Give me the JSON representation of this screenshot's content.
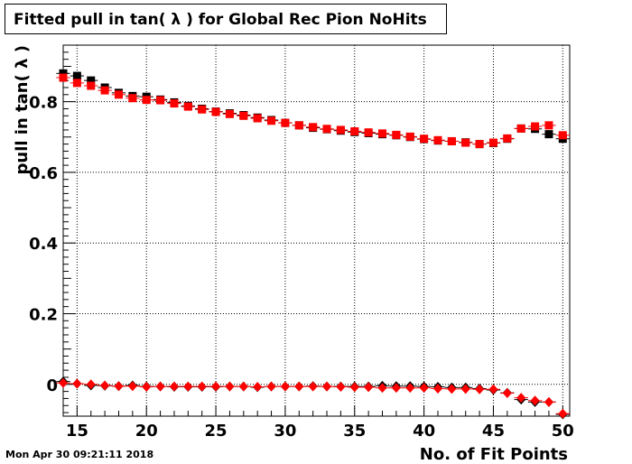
{
  "header": {
    "title": "Fitted pull in tan( λ ) for Global Rec Pion NoHits"
  },
  "footer": {
    "timestamp": "Mon Apr 30 09:21:11 2018"
  },
  "colors": {
    "series_black": "#000000",
    "series_red": "#ff0000",
    "grid": "#000000"
  },
  "chart_data": {
    "type": "scatter",
    "title": "Fitted pull in tan( λ ) for Global Rec Pion NoHits",
    "xlabel": "No. of Fit Points",
    "ylabel": "pull in tan( λ )",
    "xlim": [
      14,
      50.5
    ],
    "ylim": [
      -0.09,
      0.96
    ],
    "x_ticks": [
      15,
      20,
      25,
      30,
      35,
      40,
      45,
      50
    ],
    "y_ticks": [
      0,
      0.2,
      0.4,
      0.6,
      0.8
    ],
    "y_tick_labels": [
      "0",
      "0.2",
      "0.4",
      "0.6",
      "0.8"
    ],
    "grid": true,
    "x": [
      14,
      15,
      16,
      17,
      18,
      19,
      20,
      21,
      22,
      23,
      24,
      25,
      26,
      27,
      28,
      29,
      30,
      31,
      32,
      33,
      34,
      35,
      36,
      37,
      38,
      39,
      40,
      41,
      42,
      43,
      44,
      45,
      46,
      47,
      48,
      49,
      50
    ],
    "series": [
      {
        "marker": "square",
        "color": "#000000",
        "values": [
          0.88,
          0.873,
          0.86,
          0.84,
          0.825,
          0.816,
          0.814,
          0.806,
          0.798,
          0.788,
          0.78,
          0.772,
          0.767,
          0.762,
          0.755,
          0.748,
          0.74,
          0.733,
          0.726,
          0.722,
          0.718,
          0.714,
          0.711,
          0.708,
          0.705,
          0.7,
          0.694,
          0.69,
          0.688,
          0.685,
          0.68,
          0.683,
          0.695,
          0.724,
          0.723,
          0.708,
          0.695
        ]
      },
      {
        "marker": "square",
        "color": "#ff0000",
        "values": [
          0.868,
          0.853,
          0.845,
          0.832,
          0.82,
          0.81,
          0.805,
          0.804,
          0.795,
          0.786,
          0.778,
          0.771,
          0.765,
          0.76,
          0.753,
          0.746,
          0.74,
          0.733,
          0.728,
          0.723,
          0.72,
          0.716,
          0.713,
          0.71,
          0.706,
          0.701,
          0.695,
          0.691,
          0.688,
          0.684,
          0.68,
          0.684,
          0.696,
          0.724,
          0.73,
          0.733,
          0.705
        ]
      },
      {
        "marker": "diamond",
        "color": "#000000",
        "values": [
          0.008,
          0.002,
          -0.003,
          -0.004,
          -0.005,
          -0.003,
          -0.006,
          -0.006,
          -0.007,
          -0.007,
          -0.007,
          -0.007,
          -0.006,
          -0.006,
          -0.008,
          -0.006,
          -0.006,
          -0.006,
          -0.005,
          -0.006,
          -0.006,
          -0.006,
          -0.006,
          -0.004,
          -0.005,
          -0.005,
          -0.006,
          -0.007,
          -0.009,
          -0.009,
          -0.012,
          -0.016,
          -0.024,
          -0.043,
          -0.05,
          -0.05,
          -0.085
        ]
      },
      {
        "marker": "diamond",
        "color": "#ff0000",
        "values": [
          0.004,
          0.002,
          0.0,
          -0.003,
          -0.005,
          -0.005,
          -0.007,
          -0.006,
          -0.006,
          -0.006,
          -0.006,
          -0.006,
          -0.006,
          -0.006,
          -0.007,
          -0.006,
          -0.006,
          -0.006,
          -0.006,
          -0.006,
          -0.007,
          -0.008,
          -0.008,
          -0.01,
          -0.01,
          -0.01,
          -0.01,
          -0.012,
          -0.013,
          -0.013,
          -0.014,
          -0.014,
          -0.025,
          -0.038,
          -0.046,
          -0.05,
          -0.083
        ]
      }
    ]
  }
}
